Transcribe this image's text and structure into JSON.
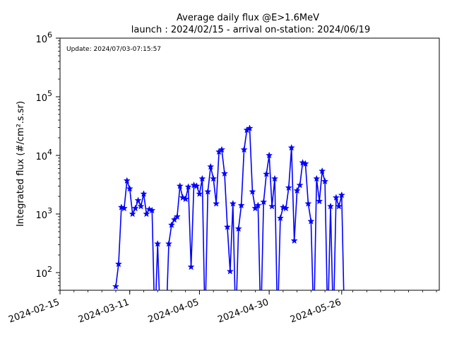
{
  "chart_data": {
    "type": "line",
    "title": "Average daily flux @E>1.6MeV",
    "subtitle": "launch : 2024/02/15 - arrival on-station: 2024/06/19",
    "annotation": "Update: 2024/07/03-07:15:57",
    "xlabel": "",
    "ylabel": "Integrated flux (#/cm².s.sr)",
    "yscale": "log",
    "ylim": [
      50,
      1000000
    ],
    "xlim": [
      "2024-02-15",
      "2024-06-30"
    ],
    "x_ticks": [
      "2024-02-15",
      "2024-03-11",
      "2024-04-05",
      "2024-04-30",
      "2024-05-26"
    ],
    "y_ticks": [
      {
        "base": "10",
        "exp": "2",
        "value": 100
      },
      {
        "base": "10",
        "exp": "3",
        "value": 1000
      },
      {
        "base": "10",
        "exp": "4",
        "value": 10000
      },
      {
        "base": "10",
        "exp": "5",
        "value": 100000
      },
      {
        "base": "10",
        "exp": "6",
        "value": 1000000
      }
    ],
    "grid": false,
    "series": [
      {
        "color": "#0000ff",
        "marker": "star",
        "points": [
          [
            "2024-03-06",
            58
          ],
          [
            "2024-03-07",
            140
          ],
          [
            "2024-03-08",
            1300
          ],
          [
            "2024-03-09",
            1250
          ],
          [
            "2024-03-10",
            3700
          ],
          [
            "2024-03-11",
            2700
          ],
          [
            "2024-03-12",
            1000
          ],
          [
            "2024-03-13",
            1250
          ],
          [
            "2024-03-14",
            1700
          ],
          [
            "2024-03-15",
            1350
          ],
          [
            "2024-03-16",
            2200
          ],
          [
            "2024-03-17",
            1000
          ],
          [
            "2024-03-18",
            1200
          ],
          [
            "2024-03-19",
            1150
          ],
          [
            "2024-03-20",
            0
          ],
          [
            "2024-03-21",
            310
          ],
          [
            "2024-03-22",
            0
          ],
          [
            "2024-03-24",
            0
          ],
          [
            "2024-03-25",
            310
          ],
          [
            "2024-03-26",
            650
          ],
          [
            "2024-03-27",
            800
          ],
          [
            "2024-03-28",
            900
          ],
          [
            "2024-03-29",
            3000
          ],
          [
            "2024-03-30",
            1900
          ],
          [
            "2024-03-31",
            1800
          ],
          [
            "2024-04-01",
            2900
          ],
          [
            "2024-04-02",
            125
          ],
          [
            "2024-04-03",
            3100
          ],
          [
            "2024-04-04",
            3000
          ],
          [
            "2024-04-05",
            2200
          ],
          [
            "2024-04-06",
            4000
          ],
          [
            "2024-04-07",
            0
          ],
          [
            "2024-04-08",
            2400
          ],
          [
            "2024-04-09",
            6400
          ],
          [
            "2024-04-10",
            4000
          ],
          [
            "2024-04-11",
            1500
          ],
          [
            "2024-04-12",
            11500
          ],
          [
            "2024-04-13",
            12500
          ],
          [
            "2024-04-14",
            4900
          ],
          [
            "2024-04-15",
            600
          ],
          [
            "2024-04-16",
            105
          ],
          [
            "2024-04-17",
            1500
          ],
          [
            "2024-04-18",
            0
          ],
          [
            "2024-04-19",
            560
          ],
          [
            "2024-04-20",
            1400
          ],
          [
            "2024-04-21",
            12500
          ],
          [
            "2024-04-22",
            27000
          ],
          [
            "2024-04-23",
            29000
          ],
          [
            "2024-04-24",
            2400
          ],
          [
            "2024-04-25",
            1250
          ],
          [
            "2024-04-26",
            1400
          ],
          [
            "2024-04-27",
            0
          ],
          [
            "2024-04-28",
            1600
          ],
          [
            "2024-04-29",
            4800
          ],
          [
            "2024-04-30",
            10000
          ],
          [
            "2024-05-01",
            1350
          ],
          [
            "2024-05-02",
            4000
          ],
          [
            "2024-05-03",
            0
          ],
          [
            "2024-05-04",
            850
          ],
          [
            "2024-05-05",
            1300
          ],
          [
            "2024-05-06",
            1250
          ],
          [
            "2024-05-07",
            2800
          ],
          [
            "2024-05-08",
            13500
          ],
          [
            "2024-05-09",
            350
          ],
          [
            "2024-05-10",
            2500
          ],
          [
            "2024-05-11",
            3100
          ],
          [
            "2024-05-12",
            7500
          ],
          [
            "2024-05-13",
            7200
          ],
          [
            "2024-05-14",
            1500
          ],
          [
            "2024-05-15",
            750
          ],
          [
            "2024-05-16",
            0
          ],
          [
            "2024-05-17",
            4000
          ],
          [
            "2024-05-18",
            1650
          ],
          [
            "2024-05-19",
            5400
          ],
          [
            "2024-05-20",
            3600
          ],
          [
            "2024-05-21",
            0
          ],
          [
            "2024-05-22",
            1350
          ],
          [
            "2024-05-23",
            0
          ],
          [
            "2024-05-24",
            1900
          ],
          [
            "2024-05-25",
            1350
          ],
          [
            "2024-05-26",
            2100
          ],
          [
            "2024-05-27",
            0
          ]
        ]
      }
    ]
  }
}
